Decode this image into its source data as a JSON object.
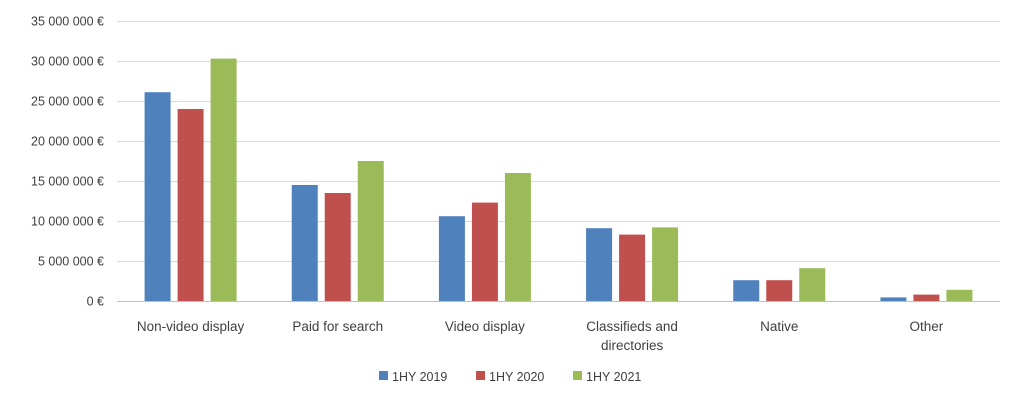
{
  "chart_data": {
    "type": "bar",
    "categories": [
      [
        "Non-video display"
      ],
      [
        "Paid for search"
      ],
      [
        "Video display"
      ],
      [
        "Classifieds and",
        "directories"
      ],
      [
        "Native"
      ],
      [
        "Other"
      ]
    ],
    "series": [
      {
        "name": "1HY 2019",
        "color": "#4f81bd",
        "values": [
          26100000,
          14500000,
          10600000,
          9100000,
          2600000,
          450000
        ]
      },
      {
        "name": "1HY 2020",
        "color": "#c0504d",
        "values": [
          24000000,
          13500000,
          12300000,
          8300000,
          2600000,
          800000
        ]
      },
      {
        "name": "1HY 2021",
        "color": "#9bbb59",
        "values": [
          30300000,
          17500000,
          16000000,
          9200000,
          4100000,
          1400000
        ]
      }
    ],
    "title": "",
    "xlabel": "",
    "ylabel": "",
    "ylim": [
      0,
      35000000
    ],
    "y_ticks": [
      {
        "value": 0,
        "label": "0 €"
      },
      {
        "value": 5000000,
        "label": "5 000 000 €"
      },
      {
        "value": 10000000,
        "label": "10 000 000 €"
      },
      {
        "value": 15000000,
        "label": "15 000 000 €"
      },
      {
        "value": 20000000,
        "label": "20 000 000 €"
      },
      {
        "value": 25000000,
        "label": "25 000 000 €"
      },
      {
        "value": 30000000,
        "label": "30 000 000 €"
      },
      {
        "value": 35000000,
        "label": "35 000 000 €"
      }
    ],
    "grid": true,
    "legend_position": "bottom"
  }
}
